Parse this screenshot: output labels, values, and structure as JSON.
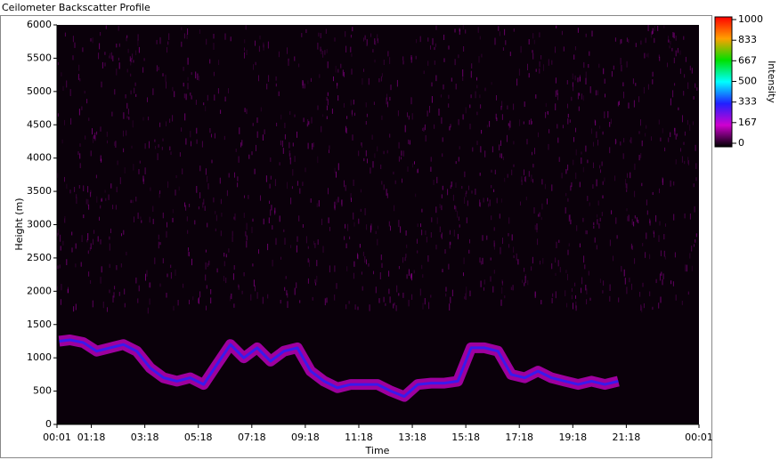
{
  "chart_data": {
    "type": "heatmap",
    "title": "Ceilometer Backscatter Profile",
    "x_label": "Time",
    "y_label": "Height (m)",
    "xlim": [
      0.0167,
      24.0167
    ],
    "xticks": [
      {
        "value": 0.0167,
        "label": "00:01"
      },
      {
        "value": 1.3,
        "label": "01:18"
      },
      {
        "value": 3.3,
        "label": "03:18"
      },
      {
        "value": 5.3,
        "label": "05:18"
      },
      {
        "value": 7.3,
        "label": "07:18"
      },
      {
        "value": 9.3,
        "label": "09:18"
      },
      {
        "value": 11.3,
        "label": "11:18"
      },
      {
        "value": 13.3,
        "label": "13:18"
      },
      {
        "value": 15.3,
        "label": "15:18"
      },
      {
        "value": 17.3,
        "label": "17:18"
      },
      {
        "value": 19.3,
        "label": "19:18"
      },
      {
        "value": 21.3,
        "label": "21:18"
      },
      {
        "value": 24.0167,
        "label": "00:01"
      }
    ],
    "ylim": [
      0,
      6000
    ],
    "yticks": [
      0,
      500,
      1000,
      1500,
      2000,
      2500,
      3000,
      3500,
      4000,
      4500,
      5000,
      5500,
      6000
    ],
    "x": [
      0.1,
      0.5,
      1.0,
      1.5,
      2.0,
      2.5,
      3.0,
      3.5,
      4.0,
      4.5,
      5.0,
      5.5,
      6.0,
      6.5,
      7.0,
      7.5,
      8.0,
      8.5,
      9.0,
      9.5,
      10.0,
      10.5,
      11.0,
      11.5,
      12.0,
      12.5,
      13.0,
      13.5,
      14.0,
      14.5,
      15.0,
      15.5,
      16.0,
      16.5,
      17.0,
      17.5,
      18.0,
      18.5,
      19.0,
      19.5,
      20.0,
      20.5,
      21.0
    ],
    "values": [
      1250,
      1270,
      1230,
      1100,
      1150,
      1200,
      1100,
      850,
      700,
      650,
      700,
      600,
      900,
      1200,
      1000,
      1150,
      950,
      1100,
      1150,
      800,
      650,
      550,
      600,
      600,
      600,
      500,
      420,
      600,
      620,
      620,
      650,
      1150,
      1150,
      1100,
      750,
      700,
      800,
      700,
      650,
      600,
      650,
      600,
      650
    ],
    "colorbar": {
      "label": "Intensity",
      "lim": [
        0,
        1000
      ],
      "ticks": [
        0,
        167,
        333,
        500,
        667,
        833,
        1000
      ]
    },
    "colorscale": [
      "#000000",
      "#d000d0",
      "#2020ff",
      "#00ffff",
      "#00e000",
      "#ffa000",
      "#ff0000"
    ]
  }
}
